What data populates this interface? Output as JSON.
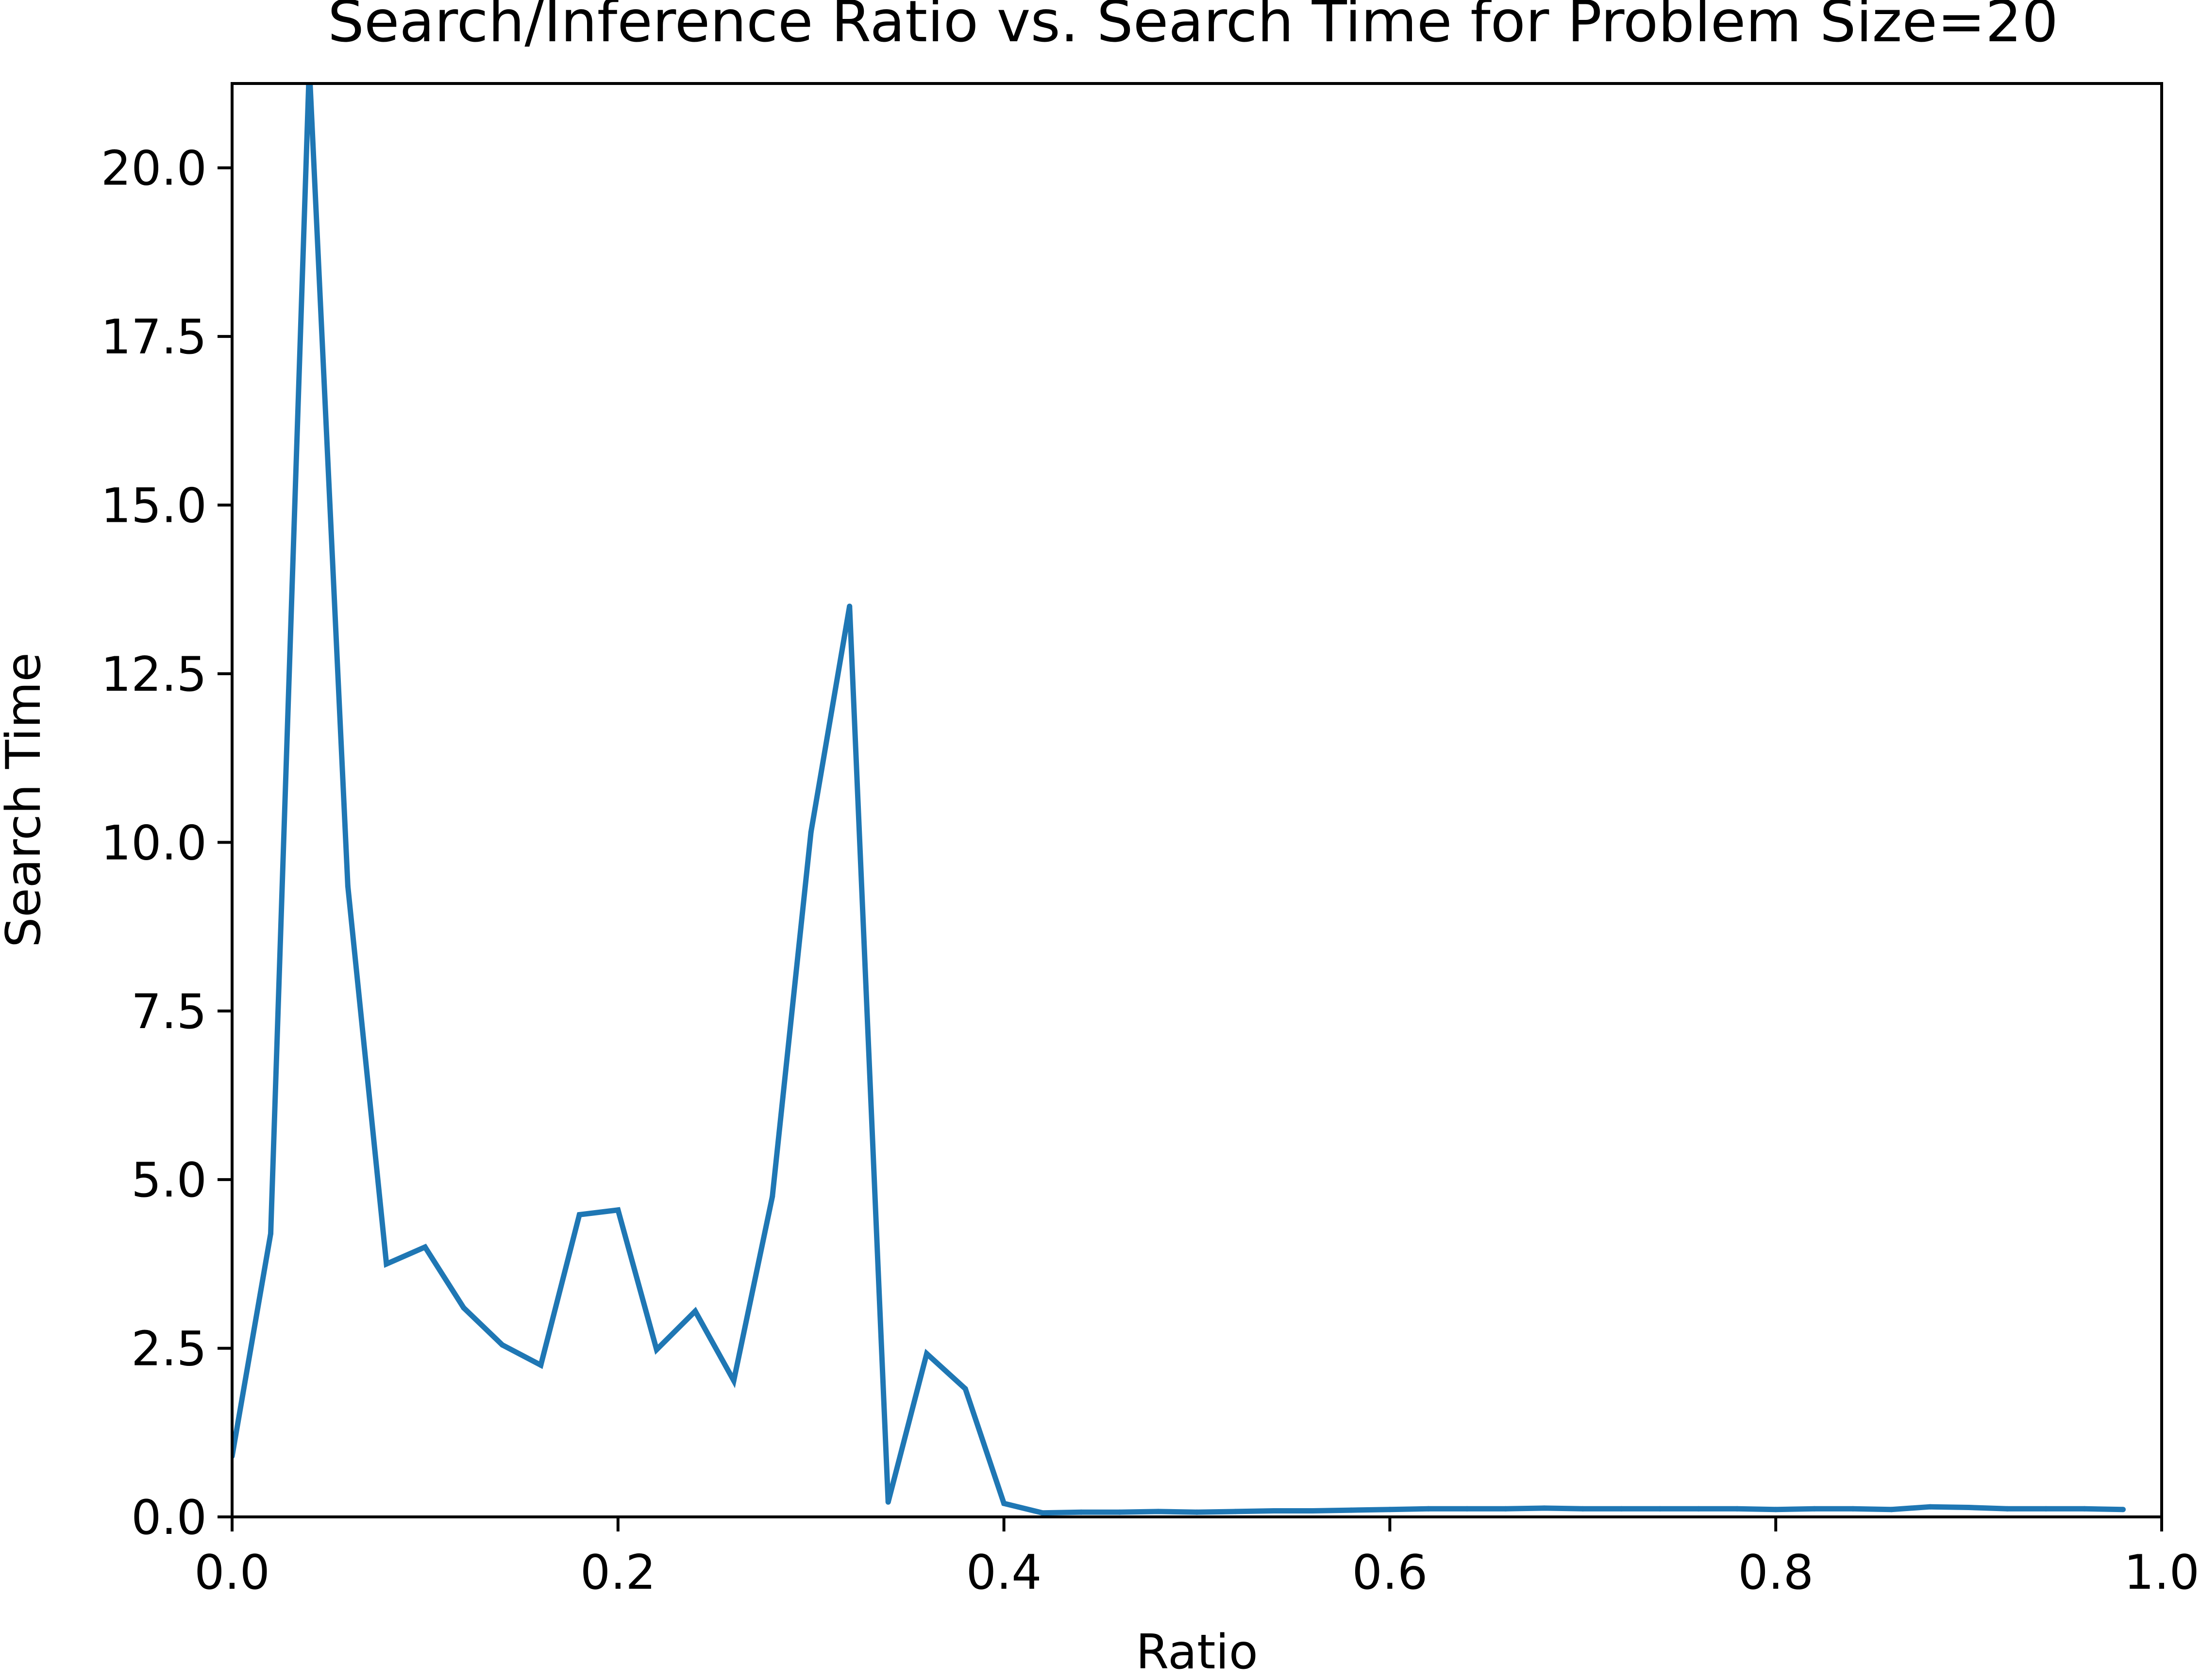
{
  "chart_data": {
    "type": "line",
    "title": "Search/Inference Ratio vs. Search Time for Problem Size=20",
    "xlabel": "Ratio",
    "ylabel": "Search Time",
    "xlim": [
      0.0,
      1.0
    ],
    "ylim": [
      0.0,
      21.25
    ],
    "xticks": [
      "0.0",
      "0.2",
      "0.4",
      "0.6",
      "0.8",
      "1.0"
    ],
    "yticks": [
      "0.0",
      "2.5",
      "5.0",
      "7.5",
      "10.0",
      "12.5",
      "15.0",
      "17.5",
      "20.0"
    ],
    "grid": false,
    "legend": "none",
    "color": "#1f77b4",
    "series": [
      {
        "x": [
          0.0,
          0.02,
          0.04,
          0.06,
          0.08,
          0.1,
          0.12,
          0.14,
          0.16,
          0.18,
          0.2,
          0.22,
          0.24,
          0.26,
          0.28,
          0.3,
          0.32,
          0.34,
          0.36,
          0.38,
          0.4,
          0.42,
          0.44,
          0.46,
          0.48,
          0.5,
          0.52,
          0.54,
          0.56,
          0.58,
          0.6,
          0.62,
          0.64,
          0.66,
          0.68,
          0.7,
          0.72,
          0.74,
          0.76,
          0.78,
          0.8,
          0.82,
          0.84,
          0.86,
          0.88,
          0.9,
          0.92,
          0.94,
          0.96,
          0.98
        ],
        "y": [
          0.9,
          4.2,
          21.5,
          9.35,
          3.75,
          4.0,
          3.1,
          2.55,
          2.25,
          4.48,
          4.55,
          2.48,
          3.05,
          2.02,
          4.75,
          10.15,
          13.5,
          0.22,
          2.42,
          1.9,
          0.2,
          0.06,
          0.07,
          0.07,
          0.08,
          0.07,
          0.08,
          0.09,
          0.09,
          0.1,
          0.11,
          0.12,
          0.12,
          0.12,
          0.13,
          0.12,
          0.12,
          0.12,
          0.12,
          0.12,
          0.11,
          0.12,
          0.12,
          0.11,
          0.15,
          0.14,
          0.12,
          0.12,
          0.12,
          0.11
        ]
      }
    ]
  }
}
